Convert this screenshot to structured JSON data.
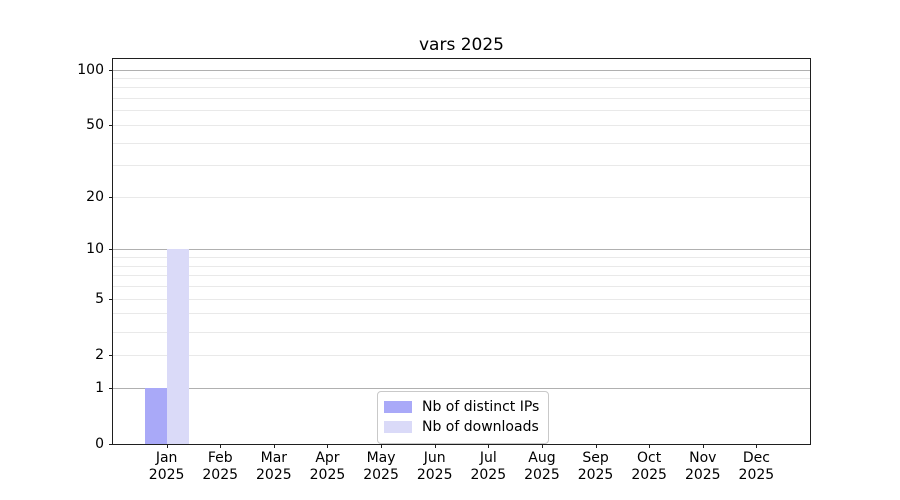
{
  "chart_data": {
    "type": "bar",
    "title": "vars 2025",
    "x": {
      "months": [
        "Jan",
        "Feb",
        "Mar",
        "Apr",
        "May",
        "Jun",
        "Jul",
        "Aug",
        "Sep",
        "Oct",
        "Nov",
        "Dec"
      ],
      "year": "2025"
    },
    "series": [
      {
        "name": "Nb of distinct IPs",
        "color": "#a9a9f8",
        "values": [
          1,
          0,
          0,
          0,
          0,
          0,
          0,
          0,
          0,
          0,
          0,
          0
        ]
      },
      {
        "name": "Nb of downloads",
        "color": "#dadaf8",
        "values": [
          10,
          0,
          0,
          0,
          0,
          0,
          0,
          0,
          0,
          0,
          0,
          0
        ]
      }
    ],
    "y_axis": {
      "scale": "log1p",
      "ticks": [
        100,
        50,
        20,
        10,
        5,
        2,
        1,
        0
      ],
      "top_value": 114,
      "major_gridlines": [
        1,
        10,
        100
      ],
      "minor_gridlines": [
        2,
        3,
        4,
        5,
        6,
        7,
        8,
        9,
        20,
        30,
        40,
        50,
        60,
        70,
        80,
        90
      ]
    },
    "legend": {
      "position": "lower center"
    },
    "colors": {
      "grid_major": "#b0b0b0",
      "grid_minor": "#e9e9e9",
      "spine": "#1f1f1f",
      "text": "#000000"
    }
  }
}
